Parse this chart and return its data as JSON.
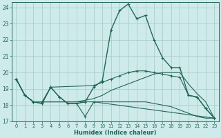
{
  "xlabel": "Humidex (Indice chaleur)",
  "xlim": [
    -0.5,
    23.5
  ],
  "ylim": [
    17,
    24.3
  ],
  "yticks": [
    17,
    18,
    19,
    20,
    21,
    22,
    23,
    24
  ],
  "xticks": [
    0,
    1,
    2,
    3,
    4,
    5,
    6,
    7,
    8,
    9,
    10,
    11,
    12,
    13,
    14,
    15,
    16,
    17,
    18,
    19,
    20,
    21,
    22,
    23
  ],
  "bg_color": "#ceeaea",
  "grid_color": "#aacfcf",
  "line_color": "#226655",
  "curves": [
    {
      "x": [
        0,
        1,
        2,
        3,
        4,
        5,
        6,
        7,
        8,
        9,
        10,
        11,
        12,
        13,
        14,
        15,
        16,
        17,
        18,
        19,
        20,
        21,
        22,
        23
      ],
      "y": [
        19.6,
        18.6,
        18.2,
        18.1,
        19.1,
        18.5,
        18.1,
        18.1,
        18.2,
        19.1,
        19.5,
        22.6,
        23.8,
        24.2,
        23.3,
        23.5,
        22.0,
        20.9,
        20.3,
        20.3,
        18.6,
        18.5,
        17.8,
        17.2
      ],
      "marker": true,
      "lw": 1.0
    },
    {
      "x": [
        0,
        1,
        2,
        3,
        4,
        9,
        10,
        11,
        12,
        13,
        14,
        15,
        16,
        17,
        18,
        19,
        20,
        21,
        22,
        23
      ],
      "y": [
        19.6,
        18.6,
        18.2,
        18.2,
        19.1,
        19.2,
        19.4,
        19.6,
        19.8,
        20.0,
        20.1,
        20.1,
        20.0,
        19.9,
        19.8,
        19.7,
        18.6,
        18.5,
        17.8,
        17.2
      ],
      "marker": true,
      "lw": 0.8
    },
    {
      "x": [
        0,
        1,
        2,
        3,
        4,
        5,
        6,
        7,
        8,
        9,
        10,
        11,
        12,
        13,
        14,
        15,
        16,
        17,
        18,
        19,
        20,
        21,
        22,
        23
      ],
      "y": [
        19.6,
        18.6,
        18.2,
        18.2,
        18.2,
        18.2,
        18.2,
        18.2,
        18.3,
        18.4,
        18.6,
        18.9,
        19.1,
        19.3,
        19.5,
        19.7,
        19.9,
        20.0,
        20.0,
        20.0,
        19.3,
        18.7,
        18.2,
        17.2
      ],
      "marker": false,
      "lw": 0.8
    },
    {
      "x": [
        0,
        1,
        2,
        3,
        4,
        5,
        6,
        7,
        8,
        9,
        10,
        11,
        12,
        13,
        14,
        15,
        16,
        17,
        18,
        19,
        20,
        21,
        22,
        23
      ],
      "y": [
        19.6,
        18.6,
        18.2,
        18.2,
        18.2,
        18.2,
        18.2,
        18.2,
        18.2,
        18.2,
        18.2,
        18.2,
        18.2,
        18.2,
        18.2,
        18.2,
        18.1,
        18.0,
        17.9,
        17.7,
        17.5,
        17.3,
        17.2,
        17.2
      ],
      "marker": false,
      "lw": 0.8
    },
    {
      "x": [
        0,
        1,
        2,
        3,
        4,
        5,
        6,
        7,
        8,
        9,
        23
      ],
      "y": [
        19.6,
        18.6,
        18.2,
        18.1,
        19.1,
        18.5,
        18.1,
        18.1,
        17.3,
        18.2,
        17.2
      ],
      "marker": true,
      "lw": 0.8
    }
  ]
}
